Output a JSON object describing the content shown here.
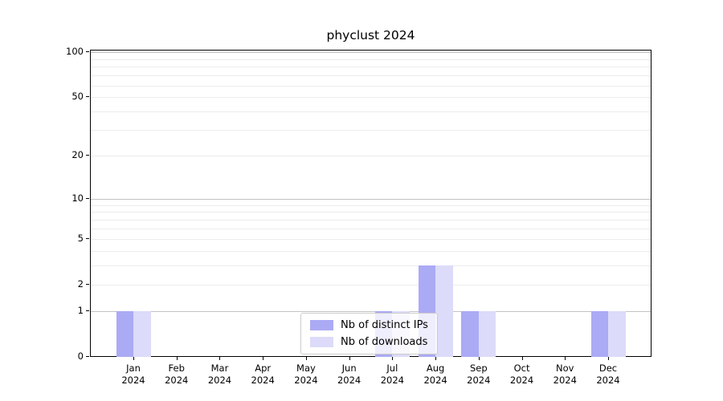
{
  "chart_data": {
    "type": "bar",
    "title": "phyclust 2024",
    "categories": [
      "Jan",
      "Feb",
      "Mar",
      "Apr",
      "May",
      "Jun",
      "Jul",
      "Aug",
      "Sep",
      "Oct",
      "Nov",
      "Dec"
    ],
    "category_year": "2024",
    "series": [
      {
        "name": "Nb of distinct IPs",
        "color": "#abaaf4",
        "values": [
          1,
          0,
          0,
          0,
          0,
          0,
          1,
          3,
          1,
          0,
          0,
          1
        ]
      },
      {
        "name": "Nb of downloads",
        "color": "#dcdbf9",
        "values": [
          1,
          0,
          0,
          0,
          0,
          0,
          1,
          3,
          1,
          0,
          0,
          1
        ]
      }
    ],
    "yscale": "log1p",
    "ylim": [
      0,
      104
    ],
    "y_tick_labels": [
      0,
      1,
      2,
      5,
      10,
      20,
      50,
      100
    ],
    "y_major_gridlines": [
      1,
      10,
      100
    ],
    "y_minor_gridlines": [
      2,
      3,
      4,
      5,
      6,
      7,
      8,
      9,
      20,
      30,
      40,
      50,
      60,
      70,
      80,
      90
    ],
    "xlabel": "",
    "ylabel": "",
    "grid": true,
    "legend_position": "lower center"
  },
  "colors": {
    "background": "#ffffff",
    "spine": "#000000",
    "grid_major": "#c3c3c3",
    "grid_minor": "#ececec",
    "tick_text": "#000000",
    "legend_border": "#cccccc"
  }
}
